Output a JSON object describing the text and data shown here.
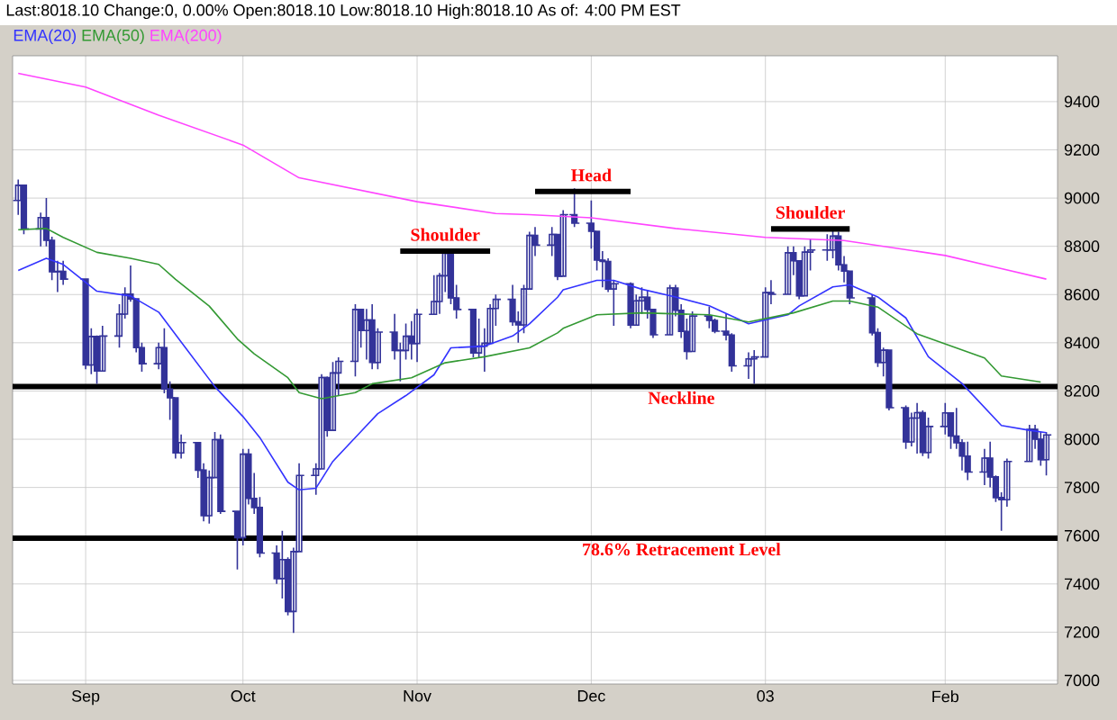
{
  "chart_data": {
    "type": "candlestick",
    "title": "Last:8018.10 Change:0, 0.00%  Open:8018.10  Low:8018.10  High:8018.10  As of: 4:00 PM EST",
    "color": "#333399",
    "x": [
      "2002-08-22",
      "2002-08-23",
      "2002-08-26",
      "2002-08-27",
      "2002-08-28",
      "2002-08-29",
      "2002-08-30",
      "2002-09-03",
      "2002-09-04",
      "2002-09-05",
      "2002-09-06",
      "2002-09-09",
      "2002-09-10",
      "2002-09-11",
      "2002-09-12",
      "2002-09-13",
      "2002-09-16",
      "2002-09-17",
      "2002-09-18",
      "2002-09-19",
      "2002-09-20",
      "2002-09-23",
      "2002-09-24",
      "2002-09-25",
      "2002-09-26",
      "2002-09-27",
      "2002-09-30",
      "2002-10-01",
      "2002-10-02",
      "2002-10-03",
      "2002-10-04",
      "2002-10-07",
      "2002-10-08",
      "2002-10-09",
      "2002-10-10",
      "2002-10-11",
      "2002-10-14",
      "2002-10-15",
      "2002-10-16",
      "2002-10-17",
      "2002-10-18",
      "2002-10-21",
      "2002-10-22",
      "2002-10-23",
      "2002-10-24",
      "2002-10-25",
      "2002-10-28",
      "2002-10-29",
      "2002-10-30",
      "2002-10-31",
      "2002-11-01",
      "2002-11-04",
      "2002-11-05",
      "2002-11-06",
      "2002-11-07",
      "2002-11-08",
      "2002-11-11",
      "2002-11-12",
      "2002-11-13",
      "2002-11-14",
      "2002-11-15",
      "2002-11-18",
      "2002-11-19",
      "2002-11-20",
      "2002-11-21",
      "2002-11-22",
      "2002-11-25",
      "2002-11-26",
      "2002-11-27",
      "2002-11-29",
      "2002-12-02",
      "2002-12-03",
      "2002-12-04",
      "2002-12-05",
      "2002-12-06",
      "2002-12-09",
      "2002-12-10",
      "2002-12-11",
      "2002-12-12",
      "2002-12-13",
      "2002-12-16",
      "2002-12-17",
      "2002-12-18",
      "2002-12-19",
      "2002-12-20",
      "2002-12-23",
      "2002-12-24",
      "2002-12-26",
      "2002-12-27",
      "2002-12-30",
      "2002-12-31",
      "2003-01-02",
      "2003-01-03",
      "2003-01-06",
      "2003-01-07",
      "2003-01-08",
      "2003-01-09",
      "2003-01-10",
      "2003-01-13",
      "2003-01-14",
      "2003-01-15",
      "2003-01-16",
      "2003-01-17",
      "2003-01-21",
      "2003-01-22",
      "2003-01-23",
      "2003-01-24",
      "2003-01-27",
      "2003-01-28",
      "2003-01-29",
      "2003-01-30",
      "2003-01-31",
      "2003-02-03",
      "2003-02-04",
      "2003-02-05",
      "2003-02-06",
      "2003-02-07",
      "2003-02-10",
      "2003-02-11",
      "2003-02-12",
      "2003-02-13",
      "2003-02-14",
      "2003-02-18",
      "2003-02-19",
      "2003-02-20",
      "2003-02-21"
    ],
    "ohlc": [
      [
        8990,
        9077,
        8930,
        9053
      ],
      [
        9053,
        9053,
        8850,
        8872
      ],
      [
        8872,
        8940,
        8800,
        8919
      ],
      [
        8919,
        9000,
        8800,
        8825
      ],
      [
        8825,
        8840,
        8660,
        8694
      ],
      [
        8694,
        8740,
        8610,
        8696
      ],
      [
        8696,
        8740,
        8640,
        8664
      ],
      [
        8664,
        8664,
        8290,
        8308
      ],
      [
        8308,
        8460,
        8270,
        8426
      ],
      [
        8426,
        8430,
        8230,
        8283
      ],
      [
        8283,
        8470,
        8283,
        8428
      ],
      [
        8428,
        8560,
        8380,
        8519
      ],
      [
        8519,
        8630,
        8500,
        8602
      ],
      [
        8602,
        8720,
        8570,
        8582
      ],
      [
        8582,
        8582,
        8360,
        8380
      ],
      [
        8380,
        8400,
        8280,
        8313
      ],
      [
        8313,
        8400,
        8290,
        8380
      ],
      [
        8380,
        8460,
        8190,
        8208
      ],
      [
        8208,
        8240,
        8080,
        8172
      ],
      [
        8172,
        8172,
        7920,
        7943
      ],
      [
        7943,
        8020,
        7920,
        7986
      ],
      [
        7986,
        7986,
        7840,
        7872
      ],
      [
        7872,
        7900,
        7660,
        7683
      ],
      [
        7683,
        7870,
        7650,
        7841
      ],
      [
        7841,
        8030,
        7841,
        7998
      ],
      [
        7998,
        8020,
        7690,
        7701
      ],
      [
        7701,
        7701,
        7460,
        7592
      ],
      [
        7592,
        7960,
        7560,
        7938
      ],
      [
        7938,
        7960,
        7730,
        7755
      ],
      [
        7755,
        7860,
        7690,
        7717
      ],
      [
        7717,
        7760,
        7510,
        7528
      ],
      [
        7528,
        7560,
        7400,
        7422
      ],
      [
        7422,
        7620,
        7340,
        7501
      ],
      [
        7501,
        7510,
        7270,
        7286
      ],
      [
        7286,
        7550,
        7197,
        7534
      ],
      [
        7534,
        7900,
        7534,
        7850
      ],
      [
        7850,
        7900,
        7770,
        7877
      ],
      [
        7877,
        8270,
        7877,
        8256
      ],
      [
        8256,
        8260,
        8010,
        8037
      ],
      [
        8037,
        8320,
        8037,
        8275
      ],
      [
        8275,
        8340,
        8180,
        8323
      ],
      [
        8323,
        8560,
        8260,
        8538
      ],
      [
        8538,
        8540,
        8380,
        8451
      ],
      [
        8451,
        8540,
        8330,
        8494
      ],
      [
        8494,
        8560,
        8290,
        8318
      ],
      [
        8318,
        8460,
        8290,
        8444
      ],
      [
        8444,
        8520,
        8330,
        8368
      ],
      [
        8368,
        8400,
        8240,
        8368
      ],
      [
        8368,
        8480,
        8330,
        8427
      ],
      [
        8427,
        8490,
        8330,
        8397
      ],
      [
        8397,
        8540,
        8320,
        8518
      ],
      [
        8518,
        8680,
        8518,
        8571
      ],
      [
        8571,
        8690,
        8520,
        8678
      ],
      [
        8678,
        8790,
        8610,
        8771
      ],
      [
        8771,
        8771,
        8560,
        8586
      ],
      [
        8586,
        8640,
        8500,
        8538
      ],
      [
        8538,
        8538,
        8340,
        8358
      ],
      [
        8358,
        8500,
        8340,
        8386
      ],
      [
        8386,
        8460,
        8280,
        8398
      ],
      [
        8398,
        8560,
        8398,
        8542
      ],
      [
        8542,
        8600,
        8470,
        8580
      ],
      [
        8580,
        8640,
        8470,
        8487
      ],
      [
        8487,
        8530,
        8400,
        8474
      ],
      [
        8474,
        8640,
        8440,
        8623
      ],
      [
        8623,
        8860,
        8623,
        8845
      ],
      [
        8845,
        8880,
        8760,
        8805
      ],
      [
        8805,
        8880,
        8760,
        8849
      ],
      [
        8849,
        8849,
        8660,
        8676
      ],
      [
        8676,
        8950,
        8676,
        8931
      ],
      [
        8931,
        9040,
        8880,
        8896
      ],
      [
        8896,
        8990,
        8790,
        8862
      ],
      [
        8862,
        8862,
        8700,
        8743
      ],
      [
        8743,
        8780,
        8630,
        8737
      ],
      [
        8737,
        8750,
        8610,
        8623
      ],
      [
        8623,
        8660,
        8470,
        8645
      ],
      [
        8645,
        8650,
        8460,
        8473
      ],
      [
        8473,
        8600,
        8470,
        8574
      ],
      [
        8574,
        8630,
        8520,
        8589
      ],
      [
        8589,
        8620,
        8500,
        8538
      ],
      [
        8538,
        8540,
        8420,
        8433
      ],
      [
        8433,
        8640,
        8433,
        8627
      ],
      [
        8627,
        8640,
        8510,
        8535
      ],
      [
        8535,
        8560,
        8420,
        8447
      ],
      [
        8447,
        8500,
        8330,
        8364
      ],
      [
        8364,
        8530,
        8364,
        8511
      ],
      [
        8511,
        8550,
        8460,
        8493
      ],
      [
        8493,
        8500,
        8440,
        8448
      ],
      [
        8448,
        8520,
        8410,
        8432
      ],
      [
        8432,
        8440,
        8280,
        8304
      ],
      [
        8304,
        8360,
        8250,
        8333
      ],
      [
        8333,
        8370,
        8230,
        8341
      ],
      [
        8341,
        8630,
        8341,
        8608
      ],
      [
        8608,
        8660,
        8560,
        8601
      ],
      [
        8601,
        8800,
        8601,
        8773
      ],
      [
        8773,
        8800,
        8680,
        8740
      ],
      [
        8740,
        8740,
        8580,
        8595
      ],
      [
        8595,
        8800,
        8595,
        8776
      ],
      [
        8776,
        8830,
        8700,
        8785
      ],
      [
        8785,
        8850,
        8740,
        8785
      ],
      [
        8785,
        8870,
        8750,
        8842
      ],
      [
        8842,
        8860,
        8700,
        8723
      ],
      [
        8723,
        8760,
        8650,
        8697
      ],
      [
        8697,
        8700,
        8560,
        8586
      ],
      [
        8586,
        8600,
        8430,
        8442
      ],
      [
        8442,
        8460,
        8300,
        8318
      ],
      [
        8318,
        8380,
        8260,
        8369
      ],
      [
        8369,
        8370,
        8120,
        8131
      ],
      [
        8131,
        8140,
        7960,
        7989
      ],
      [
        7989,
        8110,
        7970,
        8088
      ],
      [
        8088,
        8150,
        7940,
        8110
      ],
      [
        8110,
        8120,
        7930,
        7945
      ],
      [
        7945,
        8090,
        7920,
        8053
      ],
      [
        8053,
        8150,
        8020,
        8109
      ],
      [
        8109,
        8110,
        7960,
        8013
      ],
      [
        8013,
        8130,
        7960,
        7985
      ],
      [
        7985,
        8000,
        7870,
        7930
      ],
      [
        7930,
        7990,
        7830,
        7864
      ],
      [
        7864,
        7960,
        7810,
        7922
      ],
      [
        7922,
        7990,
        7800,
        7844
      ],
      [
        7844,
        7850,
        7740,
        7758
      ],
      [
        7758,
        7780,
        7620,
        7749
      ],
      [
        7749,
        7920,
        7720,
        7908
      ],
      [
        7908,
        8060,
        7908,
        8041
      ],
      [
        8041,
        8060,
        7960,
        8000
      ],
      [
        8000,
        8030,
        7890,
        7915
      ],
      [
        7915,
        8030,
        7850,
        8018
      ]
    ],
    "series": [
      {
        "type": "line",
        "name": "EMA(20)",
        "color": "#3333ff",
        "x": [
          "2002-08-22",
          "2002-08-27",
          "2002-08-30",
          "2002-09-05",
          "2002-09-11",
          "2002-09-16",
          "2002-09-20",
          "2002-09-26",
          "2002-10-01",
          "2002-10-04",
          "2002-10-09",
          "2002-10-11",
          "2002-10-14",
          "2002-10-17",
          "2002-10-22",
          "2002-10-25",
          "2002-10-30",
          "2002-11-04",
          "2002-11-07",
          "2002-11-13",
          "2002-11-18",
          "2002-11-21",
          "2002-11-26",
          "2002-11-27",
          "2002-12-03",
          "2002-12-06",
          "2002-12-11",
          "2002-12-17",
          "2002-12-23",
          "2002-12-30",
          "2003-01-06",
          "2003-01-08",
          "2003-01-14",
          "2003-01-17",
          "2003-01-22",
          "2003-01-27",
          "2003-01-31",
          "2003-02-06",
          "2003-02-13",
          "2003-02-18",
          "2003-02-21"
        ],
        "values": [
          8700,
          8750,
          8725,
          8614,
          8594,
          8527,
          8403,
          8218,
          8094,
          8007,
          7822,
          7790,
          7797,
          7908,
          8032,
          8106,
          8181,
          8267,
          8379,
          8386,
          8428,
          8478,
          8589,
          8620,
          8659,
          8659,
          8622,
          8590,
          8553,
          8479,
          8516,
          8553,
          8632,
          8640,
          8590,
          8503,
          8342,
          8231,
          8057,
          8037,
          8027
        ]
      },
      {
        "type": "line",
        "name": "EMA(50)",
        "color": "#339933",
        "x": [
          "2002-08-22",
          "2002-08-27",
          "2002-08-30",
          "2002-09-05",
          "2002-09-11",
          "2002-09-16",
          "2002-09-19",
          "2002-09-25",
          "2002-09-30",
          "2002-10-03",
          "2002-10-09",
          "2002-10-11",
          "2002-10-15",
          "2002-10-21",
          "2002-10-24",
          "2002-10-31",
          "2002-11-06",
          "2002-11-13",
          "2002-11-21",
          "2002-11-26",
          "2002-11-27",
          "2002-12-03",
          "2002-12-11",
          "2002-12-23",
          "2002-12-30",
          "2003-01-07",
          "2003-01-14",
          "2003-01-17",
          "2003-01-22",
          "2003-01-29",
          "2003-02-10",
          "2003-02-13",
          "2003-02-20"
        ],
        "values": [
          8869,
          8874,
          8837,
          8775,
          8750,
          8725,
          8663,
          8552,
          8416,
          8354,
          8255,
          8193,
          8168,
          8193,
          8230,
          8255,
          8317,
          8342,
          8379,
          8441,
          8460,
          8516,
          8524,
          8516,
          8486,
          8524,
          8573,
          8573,
          8548,
          8437,
          8337,
          8262,
          8237
        ]
      },
      {
        "type": "line",
        "color": "#000000",
        "x": [
          "2002-10-29",
          "2002-11-14"
        ],
        "values": [
          8780,
          8780
        ]
      },
      {
        "type": "line",
        "color": "#000000",
        "x": [
          "2002-11-22",
          "2002-12-09"
        ],
        "values": [
          9027,
          9027
        ]
      },
      {
        "type": "line",
        "color": "#000000",
        "x": [
          "2003-01-03",
          "2003-01-17"
        ],
        "values": [
          8872,
          8872
        ]
      },
      {
        "type": "line",
        "name": "EMA(200)",
        "color": "#ff44ff",
        "x": [
          "2002-08-22",
          "2002-09-03",
          "2002-09-16",
          "2002-10-01",
          "2002-10-11",
          "2002-11-01",
          "2002-11-15",
          "2002-11-21",
          "2002-12-02",
          "2002-12-17",
          "2003-01-02",
          "2003-01-16",
          "2003-02-03",
          "2003-02-12",
          "2003-02-21"
        ],
        "values": [
          9517,
          9460,
          9344,
          9220,
          9084,
          8985,
          8936,
          8931,
          8918,
          8874,
          8837,
          8824,
          8762,
          8713,
          8664
        ]
      }
    ],
    "xlim": [
      "2002-08-21",
      "2003-02-23"
    ],
    "xticks": [
      {
        "value": "2002-09-03",
        "label": "Sep"
      },
      {
        "value": "2002-10-01",
        "label": "Oct"
      },
      {
        "value": "2002-11-01",
        "label": "Nov"
      },
      {
        "value": "2002-12-02",
        "label": "Dec"
      },
      {
        "value": "2003-01-02",
        "label": "03"
      },
      {
        "value": "2003-02-03",
        "label": "Feb"
      }
    ],
    "ylim": [
      6985,
      9590
    ],
    "yticks": [
      7000,
      7200,
      7400,
      7600,
      7800,
      8000,
      8200,
      8400,
      8600,
      8800,
      9000,
      9200,
      9400
    ],
    "grid": true,
    "legend": "top left",
    "ref_lines": [
      {
        "axis": "y",
        "value": 8218,
        "label": "Neckline",
        "color": "#000000"
      },
      {
        "axis": "y",
        "value": 7590,
        "label": "78.6% Retracement Level",
        "color": "#000000"
      }
    ],
    "annotations": [
      {
        "text": "Shoulder",
        "x": "2002-11-06",
        "y": 8780
      },
      {
        "text": "Head",
        "x": "2002-12-02",
        "y": 9027
      },
      {
        "text": "Shoulder",
        "x": "2003-01-10",
        "y": 8872
      }
    ]
  }
}
